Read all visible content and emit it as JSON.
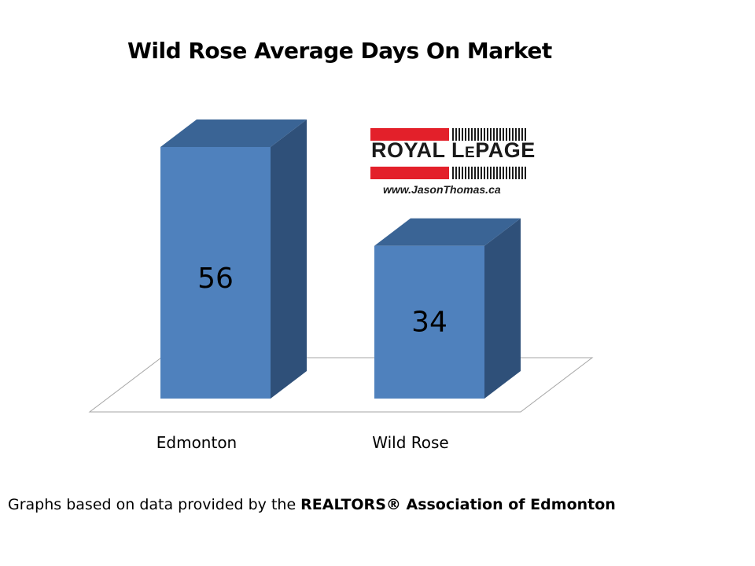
{
  "title": "Wild Rose Average Days On Market",
  "chart_data": {
    "type": "bar",
    "categories": [
      "Edmonton",
      "Wild Rose"
    ],
    "values": [
      56,
      34
    ],
    "title": "Wild Rose Average Days On Market",
    "xlabel": "",
    "ylabel": "",
    "ylim": [
      0,
      60
    ],
    "grid": false,
    "legend": "none",
    "three_d": true,
    "colors": {
      "front": "#4f81bd",
      "top": "#3a6495",
      "side": "#2f5079",
      "floor_stroke": "#a6a6a6"
    }
  },
  "logo": {
    "brand_part1": "ROYAL L",
    "brand_small": "E",
    "brand_part2": "PAGE",
    "url": "www.JasonThomas.ca",
    "red": "#e3202a",
    "dark": "#1a1a1a"
  },
  "footer": {
    "prefix": "Graphs based on data provided by the ",
    "bold": "REALTORS® Association of Edmonton"
  }
}
